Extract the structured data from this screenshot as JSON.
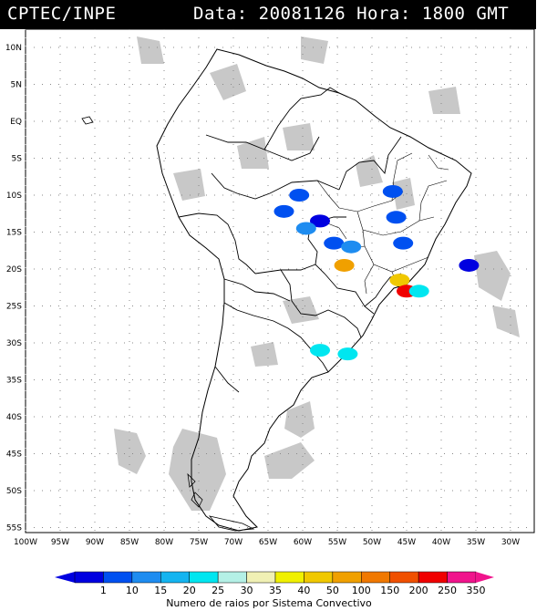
{
  "header": {
    "source": "CPTEC/INPE",
    "datetime": "Data: 20081126 Hora: 1800 GMT"
  },
  "axes": {
    "lat_labels": [
      "10N",
      "5N",
      "EQ",
      "5S",
      "10S",
      "15S",
      "20S",
      "25S",
      "30S",
      "35S",
      "40S",
      "45S",
      "50S",
      "55S"
    ],
    "lat_values": [
      10,
      5,
      0,
      -5,
      -10,
      -15,
      -20,
      -25,
      -30,
      -35,
      -40,
      -45,
      -50,
      -55
    ],
    "lon_labels": [
      "100W",
      "95W",
      "90W",
      "85W",
      "80W",
      "75W",
      "70W",
      "65W",
      "60W",
      "55W",
      "50W",
      "45W",
      "40W",
      "35W",
      "30W"
    ],
    "lon_values": [
      -100,
      -95,
      -90,
      -85,
      -80,
      -75,
      -70,
      -65,
      -60,
      -55,
      -50,
      -45,
      -40,
      -35,
      -30
    ]
  },
  "legend": {
    "caption": "Numero de raios por Sistema Convectivo",
    "labels": [
      "1",
      "10",
      "15",
      "20",
      "25",
      "30",
      "35",
      "40",
      "50",
      "100",
      "150",
      "200",
      "250",
      "350"
    ],
    "colors": [
      "#0000e0",
      "#0050f0",
      "#1e8cf0",
      "#14b4f0",
      "#00e6f0",
      "#b4f0e6",
      "#f0f0b4",
      "#f0f000",
      "#f0c800",
      "#f0a000",
      "#f07800",
      "#f05000",
      "#f00000",
      "#f0148c"
    ]
  },
  "systems": [
    {
      "lon": -60.5,
      "lat": -10.0,
      "color": "#0050f0"
    },
    {
      "lon": -57.5,
      "lat": -13.5,
      "color": "#0000e0"
    },
    {
      "lon": -62.7,
      "lat": -12.2,
      "color": "#0050f0"
    },
    {
      "lon": -59.5,
      "lat": -14.5,
      "color": "#1e8cf0"
    },
    {
      "lon": -55.5,
      "lat": -16.5,
      "color": "#0050f0"
    },
    {
      "lon": -53.0,
      "lat": -17.0,
      "color": "#1e8cf0"
    },
    {
      "lon": -47.0,
      "lat": -9.5,
      "color": "#0050f0"
    },
    {
      "lon": -46.5,
      "lat": -13.0,
      "color": "#0050f0"
    },
    {
      "lon": -45.5,
      "lat": -16.5,
      "color": "#0050f0"
    },
    {
      "lon": -54.0,
      "lat": -19.5,
      "color": "#f0a000"
    },
    {
      "lon": -46.0,
      "lat": -21.5,
      "color": "#f0c800"
    },
    {
      "lon": -45.0,
      "lat": -23.0,
      "color": "#f00000"
    },
    {
      "lon": -43.2,
      "lat": -23.0,
      "color": "#00e6f0"
    },
    {
      "lon": -36.0,
      "lat": -19.5,
      "color": "#0000e0"
    },
    {
      "lon": -57.5,
      "lat": -31.0,
      "color": "#00e6f0"
    },
    {
      "lon": -53.5,
      "lat": -31.5,
      "color": "#00e6f0"
    }
  ]
}
